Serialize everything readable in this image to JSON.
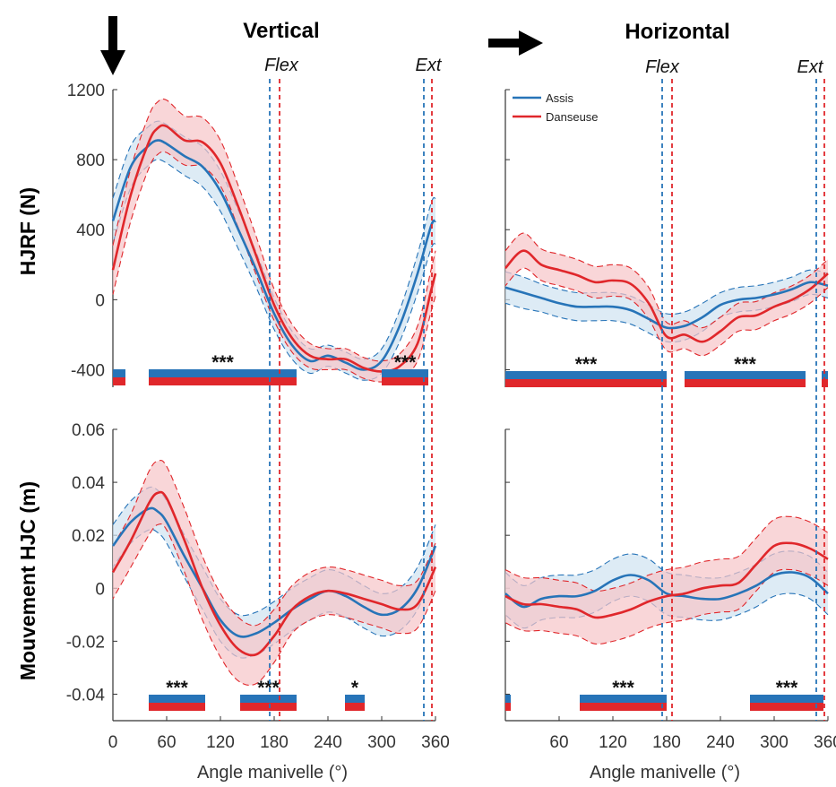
{
  "colors": {
    "assis": "#2774b8",
    "danseuse": "#e0272b",
    "assis_band": "#cfe2f1",
    "danseuse_band": "#f6c5c7"
  },
  "headers": {
    "vertical": "Vertical",
    "horizontal": "Horizontal"
  },
  "arrows": {
    "vertical": "arrow-down-icon",
    "horizontal": "arrow-right-icon"
  },
  "markers": {
    "flex": "Flex",
    "ext": "Ext",
    "flex_assis_deg": 175,
    "flex_danseuse_deg": 186,
    "ext_assis_deg": 347,
    "ext_danseuse_deg": 356
  },
  "ylabels": {
    "top": "HJRF (N)",
    "bottom": "Mouvement HJC (m)"
  },
  "xlabel": "Angle manivelle (°)",
  "chart_data": [
    {
      "id": "vertical-hjrf",
      "type": "line",
      "title": "Vertical",
      "ylabel": "HJRF (N)",
      "xlabel": "",
      "xlim": [
        0,
        360
      ],
      "ylim": [
        -500,
        1200
      ],
      "yticks": [
        -400,
        0,
        400,
        800,
        1200
      ],
      "ytick_labels": [
        "-400",
        "0",
        "400",
        "800",
        "1200"
      ],
      "xticks": [],
      "xtick_labels": [],
      "legend": false,
      "x": [
        0,
        20,
        40,
        50,
        60,
        80,
        100,
        120,
        140,
        160,
        180,
        200,
        220,
        240,
        260,
        280,
        300,
        320,
        340,
        355,
        360
      ],
      "series": [
        {
          "name": "Assis",
          "values": [
            450,
            760,
            880,
            910,
            890,
            820,
            760,
            620,
            400,
            170,
            -80,
            -260,
            -350,
            -320,
            -360,
            -400,
            -350,
            -150,
            150,
            420,
            450
          ],
          "sd": [
            130,
            120,
            110,
            110,
            110,
            110,
            115,
            115,
            110,
            100,
            90,
            80,
            70,
            60,
            60,
            60,
            70,
            90,
            110,
            130,
            130
          ]
        },
        {
          "name": "Danseuse",
          "values": [
            170,
            600,
            900,
            980,
            990,
            910,
            900,
            780,
            530,
            250,
            -30,
            -220,
            -320,
            -340,
            -340,
            -390,
            -410,
            -380,
            -250,
            50,
            150
          ],
          "sd": [
            140,
            150,
            150,
            150,
            150,
            140,
            140,
            130,
            120,
            110,
            90,
            80,
            70,
            60,
            60,
            60,
            60,
            70,
            100,
            120,
            130
          ]
        }
      ],
      "significance": [
        {
          "start": 0,
          "end": 14,
          "label": ""
        },
        {
          "start": 40,
          "end": 205,
          "label": "***"
        },
        {
          "start": 300,
          "end": 352,
          "label": "***"
        }
      ]
    },
    {
      "id": "horizontal-hjrf",
      "type": "line",
      "title": "Horizontal",
      "ylabel": "",
      "xlabel": "",
      "xlim": [
        0,
        360
      ],
      "ylim": [
        -500,
        1200
      ],
      "yticks": [
        -400,
        0,
        400,
        800,
        1200
      ],
      "ytick_labels": [],
      "xticks": [],
      "xtick_labels": [],
      "legend": true,
      "legend_position": "top-left",
      "x": [
        0,
        20,
        40,
        60,
        80,
        100,
        120,
        140,
        160,
        180,
        200,
        220,
        240,
        260,
        280,
        300,
        320,
        340,
        360
      ],
      "series": [
        {
          "name": "Assis",
          "values": [
            70,
            40,
            10,
            -20,
            -40,
            -40,
            -40,
            -60,
            -110,
            -160,
            -150,
            -100,
            -30,
            0,
            10,
            30,
            60,
            100,
            80
          ],
          "sd": [
            90,
            90,
            80,
            80,
            80,
            80,
            80,
            80,
            80,
            80,
            80,
            80,
            70,
            70,
            70,
            70,
            70,
            70,
            70
          ]
        },
        {
          "name": "Danseuse",
          "values": [
            180,
            280,
            200,
            170,
            140,
            100,
            110,
            90,
            -20,
            -210,
            -200,
            -240,
            -180,
            -100,
            -90,
            -40,
            0,
            60,
            150
          ],
          "sd": [
            100,
            100,
            90,
            90,
            90,
            90,
            90,
            90,
            90,
            80,
            80,
            80,
            80,
            80,
            80,
            80,
            80,
            80,
            80
          ]
        }
      ],
      "significance": [
        {
          "start": 0,
          "end": 180,
          "label": "***"
        },
        {
          "start": 200,
          "end": 335,
          "label": "***"
        },
        {
          "start": 353,
          "end": 360,
          "label": ""
        }
      ]
    },
    {
      "id": "vertical-hjc",
      "type": "line",
      "title": "",
      "ylabel": "Mouvement HJC (m)",
      "xlabel": "Angle manivelle (°)",
      "xlim": [
        0,
        360
      ],
      "ylim": [
        -0.05,
        0.06
      ],
      "yticks": [
        -0.04,
        -0.02,
        0,
        0.02,
        0.04,
        0.06
      ],
      "ytick_labels": [
        "-0.04",
        "-0.02",
        "0",
        "0.02",
        "0.04",
        "0.06"
      ],
      "xticks": [
        0,
        60,
        120,
        180,
        240,
        300,
        360
      ],
      "xtick_labels": [
        "0",
        "60",
        "120",
        "180",
        "240",
        "300",
        "360"
      ],
      "legend": false,
      "x": [
        0,
        20,
        40,
        50,
        60,
        80,
        100,
        120,
        140,
        160,
        180,
        200,
        220,
        240,
        260,
        280,
        300,
        320,
        340,
        360
      ],
      "series": [
        {
          "name": "Assis",
          "values": [
            0.016,
            0.025,
            0.03,
            0.029,
            0.025,
            0.012,
            0.0,
            -0.012,
            -0.018,
            -0.017,
            -0.013,
            -0.008,
            -0.004,
            -0.001,
            -0.003,
            -0.007,
            -0.01,
            -0.008,
            0.0,
            0.016
          ],
          "sd": [
            0.008,
            0.008,
            0.008,
            0.008,
            0.008,
            0.008,
            0.008,
            0.008,
            0.008,
            0.008,
            0.008,
            0.008,
            0.008,
            0.008,
            0.008,
            0.008,
            0.008,
            0.008,
            0.008,
            0.008
          ]
        },
        {
          "name": "Danseuse",
          "values": [
            0.006,
            0.018,
            0.032,
            0.036,
            0.034,
            0.018,
            0.0,
            -0.014,
            -0.023,
            -0.025,
            -0.018,
            -0.008,
            -0.003,
            -0.001,
            -0.002,
            -0.004,
            -0.006,
            -0.008,
            -0.006,
            0.008
          ],
          "sd": [
            0.01,
            0.01,
            0.012,
            0.012,
            0.012,
            0.012,
            0.012,
            0.012,
            0.012,
            0.011,
            0.01,
            0.009,
            0.009,
            0.009,
            0.009,
            0.009,
            0.009,
            0.009,
            0.009,
            0.009
          ]
        }
      ],
      "significance": [
        {
          "start": 40,
          "end": 103,
          "label": "***"
        },
        {
          "start": 142,
          "end": 205,
          "label": "***"
        },
        {
          "start": 259,
          "end": 281,
          "label": "*"
        }
      ]
    },
    {
      "id": "horizontal-hjc",
      "type": "line",
      "title": "",
      "ylabel": "",
      "xlabel": "Angle manivelle (°)",
      "xlim": [
        0,
        360
      ],
      "ylim": [
        -0.05,
        0.06
      ],
      "yticks": [
        -0.04,
        -0.02,
        0,
        0.02,
        0.04,
        0.06
      ],
      "ytick_labels": [],
      "xticks": [
        60,
        120,
        180,
        240,
        300,
        360
      ],
      "xtick_labels": [
        "60",
        "120",
        "180",
        "240",
        "300",
        "360"
      ],
      "legend": false,
      "x": [
        0,
        20,
        40,
        60,
        80,
        100,
        120,
        140,
        160,
        180,
        200,
        220,
        240,
        260,
        280,
        300,
        320,
        340,
        360
      ],
      "series": [
        {
          "name": "Assis",
          "values": [
            -0.002,
            -0.007,
            -0.004,
            -0.003,
            -0.003,
            -0.001,
            0.003,
            0.005,
            0.003,
            -0.002,
            -0.003,
            -0.004,
            -0.004,
            -0.002,
            0.001,
            0.005,
            0.006,
            0.004,
            -0.002
          ],
          "sd": [
            0.008,
            0.008,
            0.008,
            0.008,
            0.008,
            0.008,
            0.008,
            0.008,
            0.008,
            0.008,
            0.008,
            0.008,
            0.008,
            0.008,
            0.008,
            0.008,
            0.008,
            0.008,
            0.008
          ]
        },
        {
          "name": "Danseuse",
          "values": [
            -0.003,
            -0.006,
            -0.006,
            -0.007,
            -0.008,
            -0.011,
            -0.01,
            -0.008,
            -0.005,
            -0.003,
            -0.002,
            0.0,
            0.001,
            0.002,
            0.009,
            0.016,
            0.017,
            0.015,
            0.011
          ],
          "sd": [
            0.01,
            0.01,
            0.01,
            0.01,
            0.01,
            0.01,
            0.01,
            0.01,
            0.01,
            0.01,
            0.01,
            0.01,
            0.01,
            0.01,
            0.01,
            0.01,
            0.01,
            0.01,
            0.01
          ]
        }
      ],
      "significance": [
        {
          "start": 0,
          "end": 6,
          "label": ""
        },
        {
          "start": 83,
          "end": 180,
          "label": "***"
        },
        {
          "start": 273,
          "end": 355,
          "label": "***"
        }
      ]
    }
  ]
}
